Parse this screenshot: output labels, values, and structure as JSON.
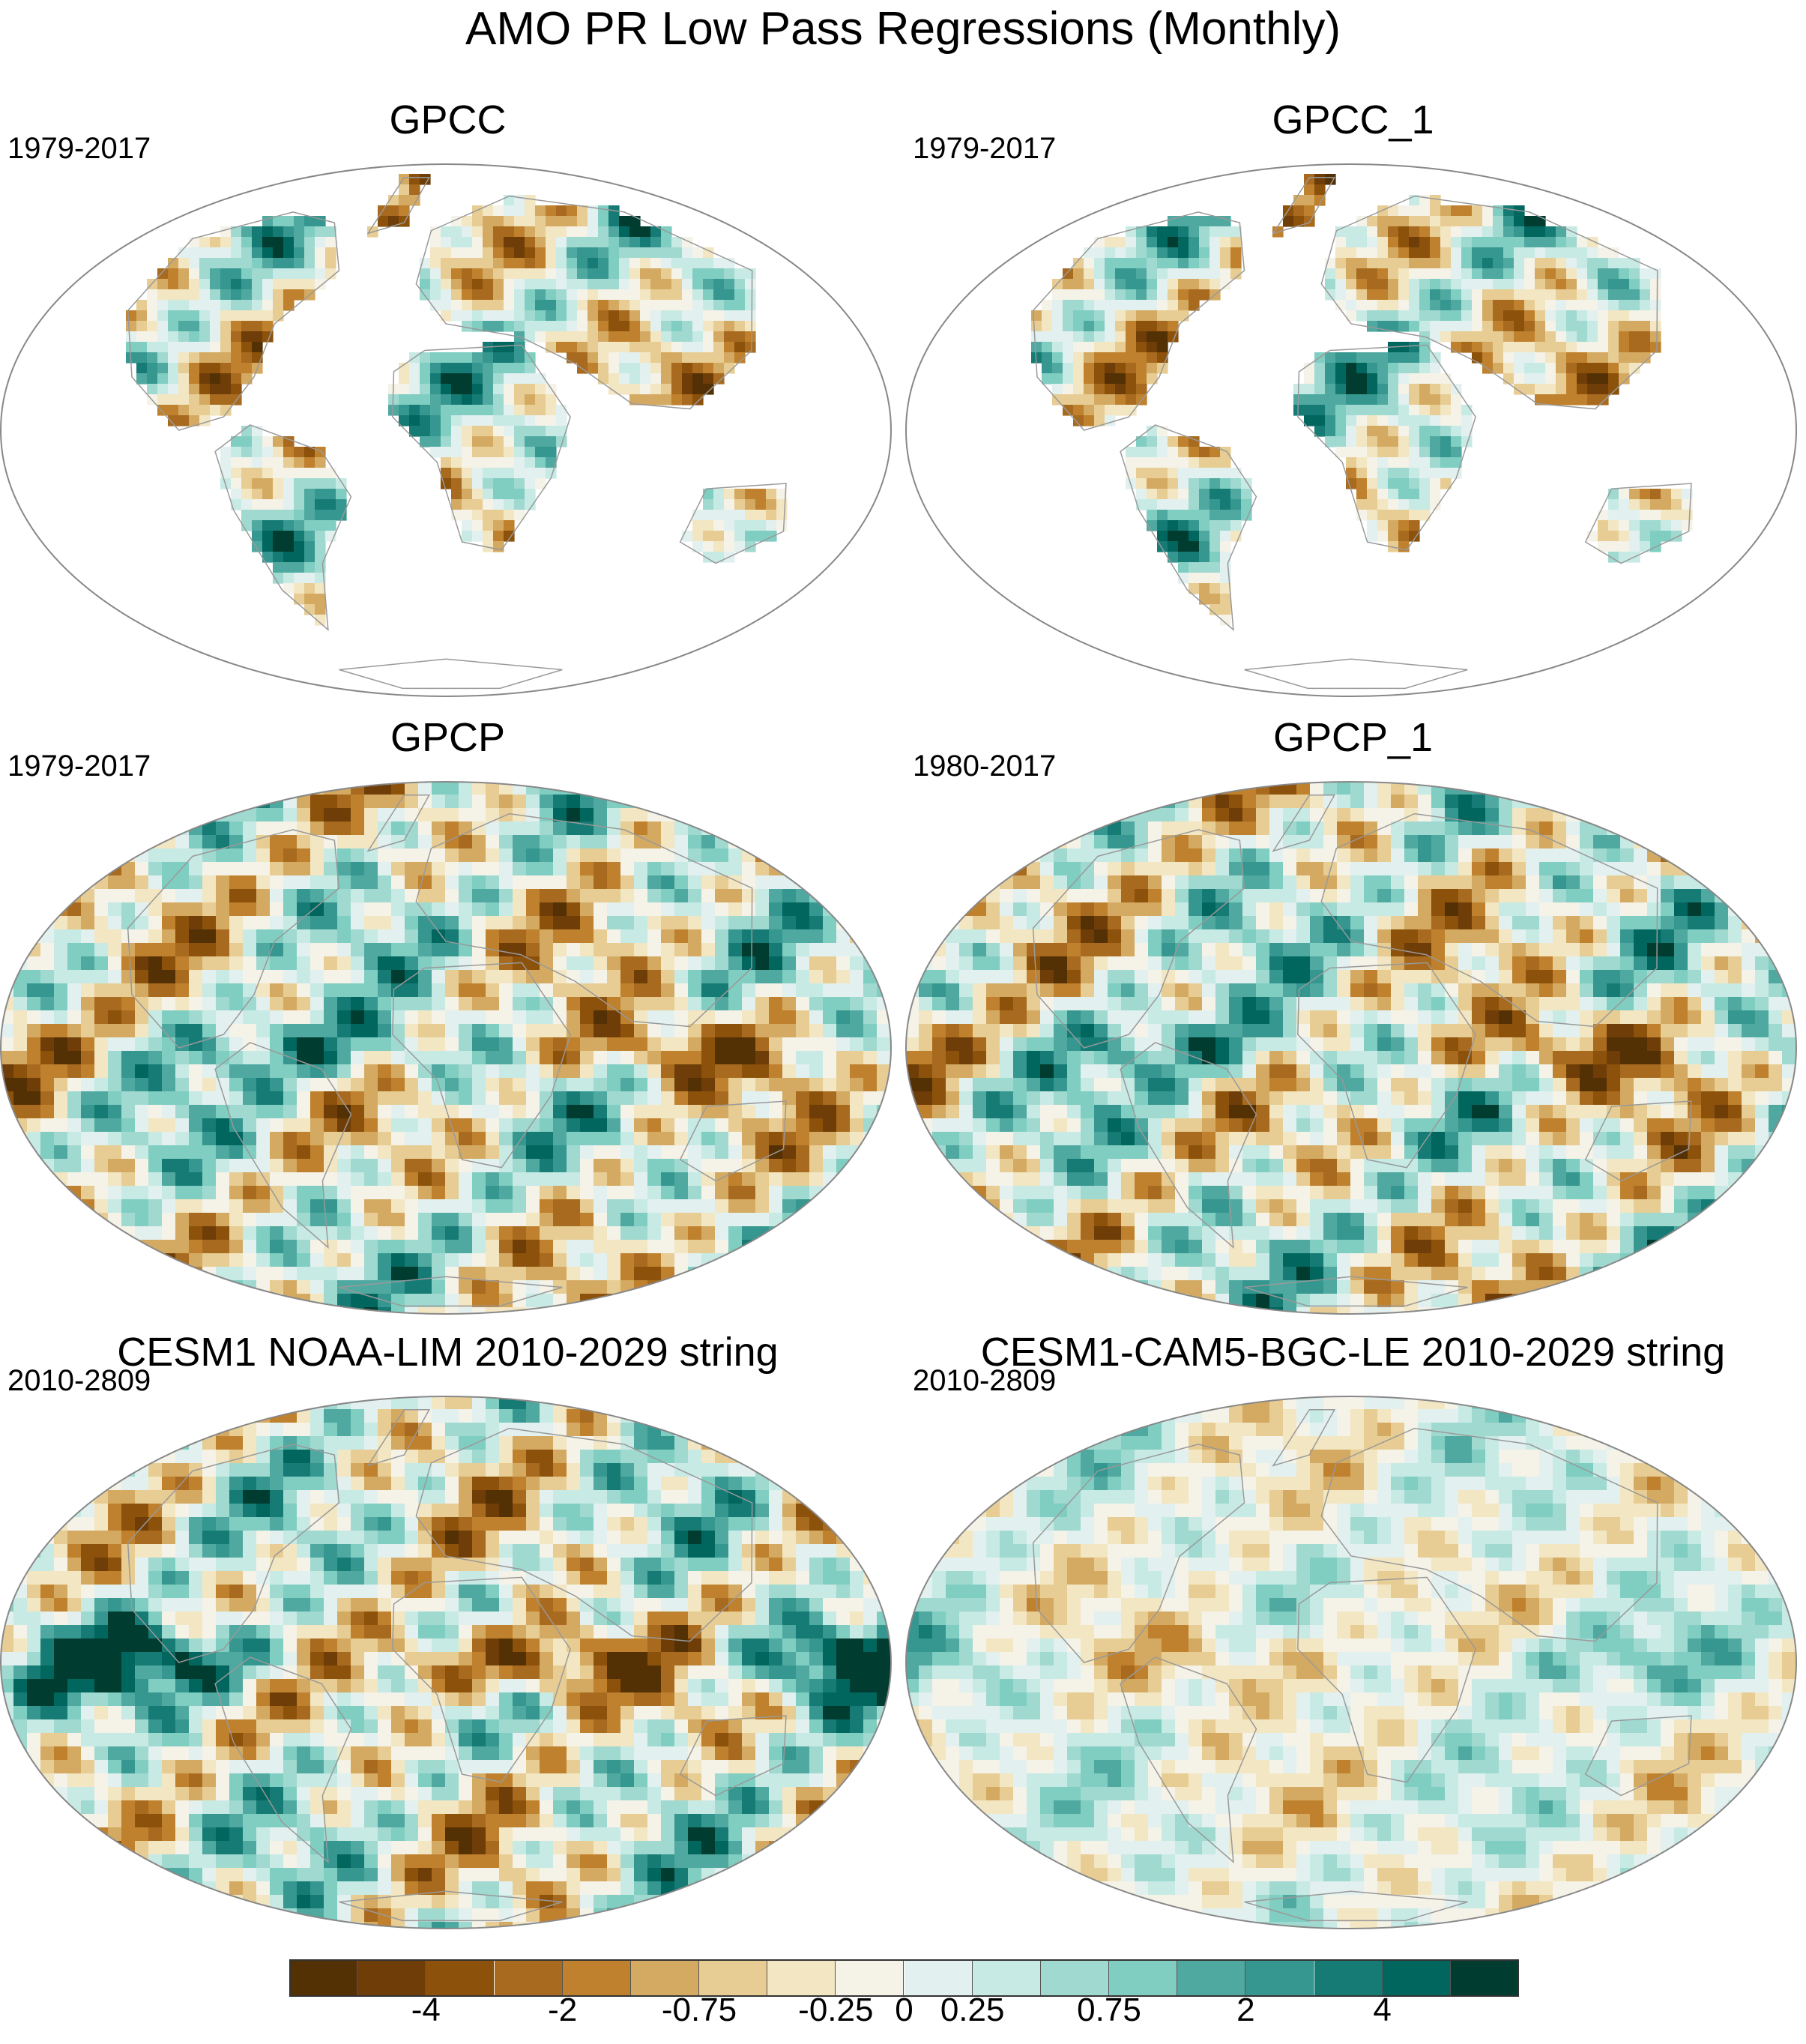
{
  "title": "AMO PR Low Pass Regressions (Monthly)",
  "panels": [
    {
      "title": "GPCC",
      "period": "1979-2017",
      "coverage": "land"
    },
    {
      "title": "GPCC_1",
      "period": "1979-2017",
      "coverage": "land"
    },
    {
      "title": "GPCP",
      "period": "1979-2017",
      "coverage": "global"
    },
    {
      "title": "GPCP_1",
      "period": "1980-2017",
      "coverage": "global"
    },
    {
      "title": "CESM1 NOAA-LIM 2010-2029 string",
      "period": "2010-2809",
      "coverage": "global"
    },
    {
      "title": "CESM1-CAM5-BGC-LE 2010-2029 string",
      "period": "2010-2809",
      "coverage": "global"
    }
  ],
  "colorbar": {
    "colors": [
      "#543005",
      "#6f3d07",
      "#8c510a",
      "#a86a1e",
      "#bf812d",
      "#d4aa62",
      "#e7cd93",
      "#f3e6c2",
      "#f5f2e8",
      "#e2f1ef",
      "#c7eae5",
      "#a0d9d0",
      "#80cdc1",
      "#4fa9a0",
      "#35978f",
      "#157b74",
      "#01665e",
      "#003c30"
    ],
    "labels": [
      "-4",
      "-2",
      "-0.75",
      "-0.25",
      "0",
      "0.25",
      "0.75",
      "2",
      "4"
    ]
  },
  "colors": {
    "land_outline": "#999999",
    "map_border": "#888888",
    "dry_strong": "#8c510a",
    "wet_strong": "#01665e"
  }
}
